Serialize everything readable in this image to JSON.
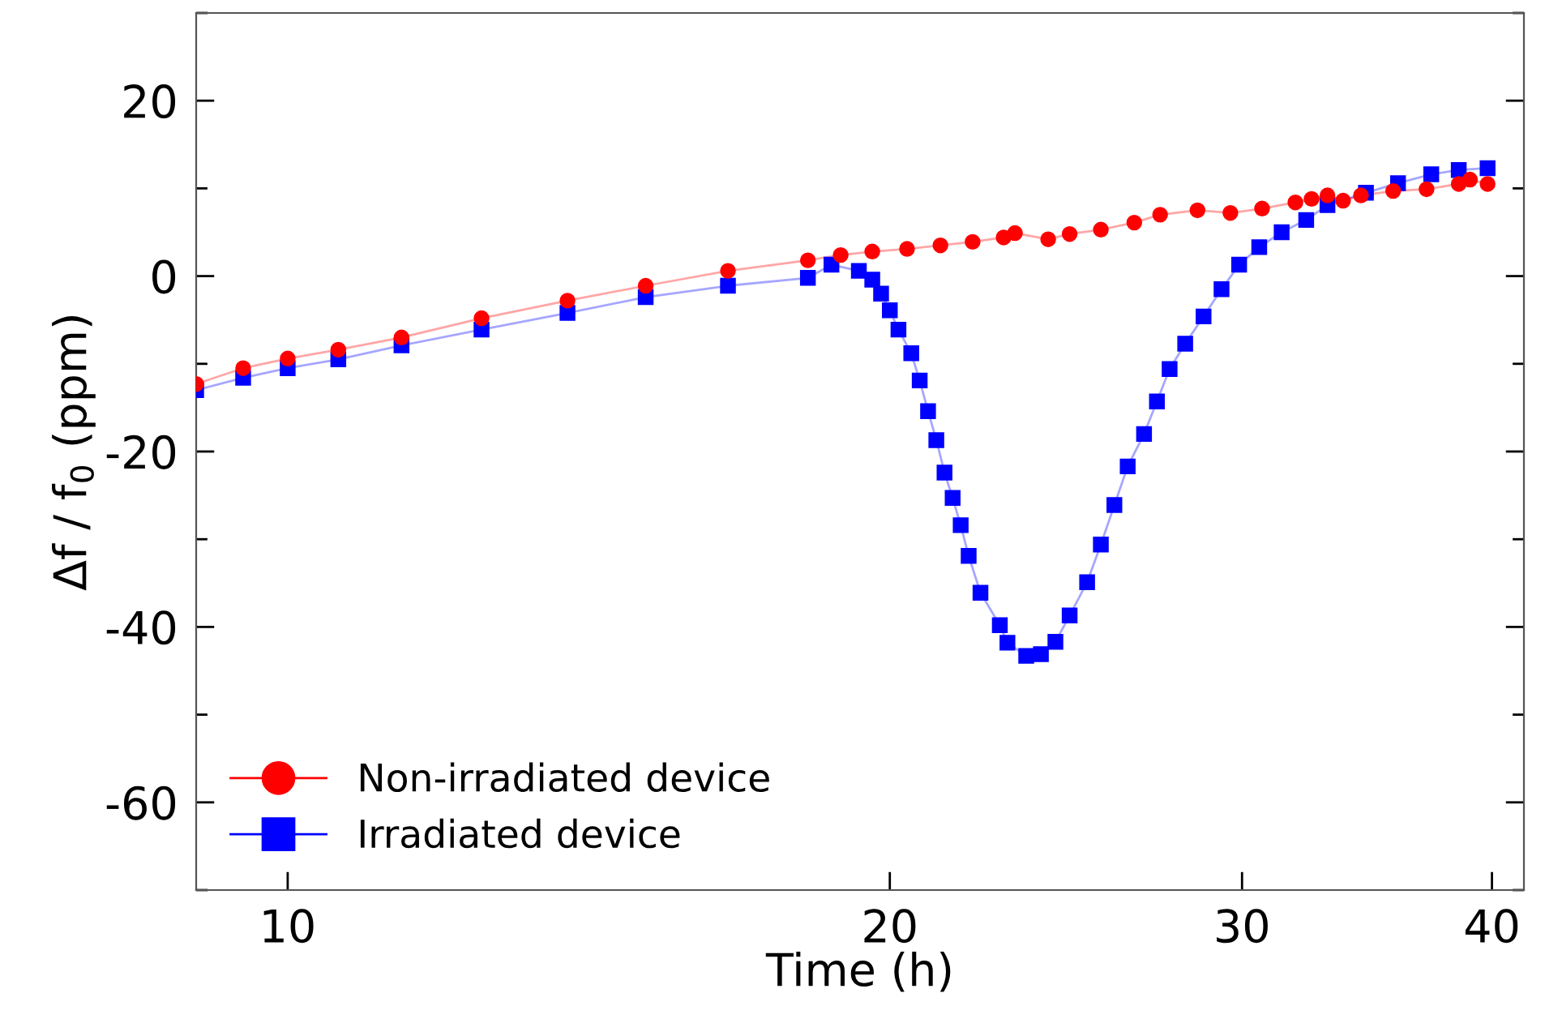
{
  "chart_data": {
    "type": "line",
    "xlabel": "Time (h)",
    "ylabel": "Δf / f$_{0}$ (ppm)",
    "log": "x",
    "xlim": [
      9,
      41.5
    ],
    "xticks": [
      10,
      20,
      30,
      40
    ],
    "ylim": [
      -70,
      30
    ],
    "yticks": [
      {
        "value": -70,
        "label": null
      },
      -60,
      {
        "value": -50,
        "label": null
      },
      -40,
      {
        "value": -30,
        "label": null
      },
      -20,
      {
        "value": -10,
        "label": null
      },
      0,
      {
        "value": 10,
        "label": null
      },
      20,
      {
        "value": 30,
        "label": null
      }
    ],
    "grid": false,
    "legend": "bottom left",
    "line_style": "solid",
    "series": [
      {
        "name": "Non-irradiated device",
        "color": "#ff0000",
        "marker": "circle",
        "x": [
          9.0,
          9.5,
          10.0,
          10.6,
          11.4,
          12.5,
          13.8,
          15.1,
          16.6,
          18.2,
          18.9,
          19.6,
          20.4,
          21.2,
          22.0,
          22.8,
          23.1,
          24.0,
          24.6,
          25.5,
          26.5,
          27.3,
          28.5,
          29.6,
          30.7,
          31.9,
          32.5,
          33.1,
          33.7,
          34.4,
          35.7,
          37.1,
          38.5,
          39.0,
          39.8
        ],
        "values": [
          -12.3,
          -10.5,
          -9.4,
          -8.4,
          -7.0,
          -4.8,
          -2.8,
          -1.1,
          0.6,
          1.8,
          2.4,
          2.8,
          3.1,
          3.5,
          3.9,
          4.4,
          4.9,
          4.2,
          4.8,
          5.3,
          6.1,
          7.0,
          7.5,
          7.2,
          7.7,
          8.4,
          8.8,
          9.2,
          8.6,
          9.2,
          9.7,
          9.9,
          10.5,
          11.0,
          10.5
        ]
      },
      {
        "name": "Irradiated device",
        "color": "#0000ff",
        "marker": "square",
        "x": [
          9.0,
          9.5,
          10.0,
          10.6,
          11.4,
          12.5,
          13.8,
          15.1,
          16.6,
          18.2,
          18.7,
          19.3,
          19.6,
          19.8,
          20.0,
          20.2,
          20.5,
          20.7,
          20.9,
          21.1,
          21.3,
          21.5,
          21.7,
          21.9,
          22.2,
          22.7,
          22.9,
          23.4,
          23.8,
          24.2,
          24.6,
          25.1,
          25.5,
          25.9,
          26.3,
          26.8,
          27.2,
          27.6,
          28.1,
          28.7,
          29.3,
          29.9,
          30.6,
          31.4,
          32.3,
          33.1,
          34.6,
          35.9,
          37.3,
          38.5,
          39.8
        ],
        "values": [
          -13.0,
          -11.6,
          -10.5,
          -9.5,
          -7.9,
          -6.1,
          -4.2,
          -2.4,
          -1.1,
          -0.2,
          1.3,
          0.6,
          -0.4,
          -2.0,
          -3.9,
          -6.1,
          -8.8,
          -11.9,
          -15.4,
          -18.7,
          -22.4,
          -25.3,
          -28.4,
          -31.9,
          -36.1,
          -39.8,
          -41.8,
          -43.3,
          -43.1,
          -41.7,
          -38.7,
          -34.9,
          -30.6,
          -26.1,
          -21.7,
          -18.0,
          -14.3,
          -10.6,
          -7.7,
          -4.6,
          -1.5,
          1.3,
          3.3,
          5.0,
          6.4,
          8.1,
          9.5,
          10.6,
          11.6,
          12.1,
          12.3
        ]
      }
    ]
  }
}
